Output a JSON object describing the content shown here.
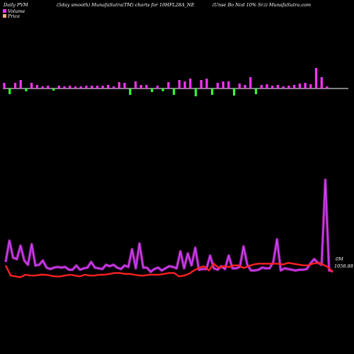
{
  "header": {
    "left": "Daily PVM",
    "center": "(5day smooth) MunafaSutra(TM) charts for 10HFL28A_NE",
    "right": "(Unse   Bo   Ncd 10% Sr.i) MunafaSutra.com"
  },
  "legend": {
    "volume_label": "Volume",
    "price_label": "Price",
    "volume_color": "#ff33ff",
    "price_color": "#ffaa88"
  },
  "labels": {
    "volume_marker": "0M",
    "last_price": "1058.88"
  },
  "colors": {
    "bar_up": "#ff33ff",
    "bar_down": "#33ff33",
    "volume_line": "#cc44ff",
    "price_line": "#ff2020",
    "axis": "#ffffff"
  },
  "chart_data": [
    {
      "type": "bar",
      "name": "volume_bars",
      "direction": [
        "up",
        "down",
        "up",
        "up",
        "down",
        "up",
        "up",
        "up",
        "up",
        "down",
        "up",
        "up",
        "up",
        "up",
        "up",
        "up",
        "up",
        "up",
        "up",
        "up",
        "up",
        "up",
        "up",
        "down",
        "up",
        "up",
        "up",
        "down",
        "up",
        "down",
        "up",
        "down",
        "up",
        "up",
        "up",
        "down",
        "up",
        "up",
        "down",
        "up",
        "up",
        "up",
        "down",
        "up",
        "up",
        "up",
        "down",
        "up",
        "up",
        "up",
        "up",
        "up",
        "up",
        "up",
        "up",
        "up",
        "up",
        "up",
        "up",
        "up"
      ],
      "values": [
        8,
        8,
        8,
        12,
        4,
        8,
        5,
        3,
        4,
        3,
        4,
        3,
        4,
        3,
        3,
        4,
        4,
        4,
        4,
        5,
        3,
        9,
        8,
        9,
        10,
        5,
        5,
        5,
        4,
        4,
        9,
        9,
        12,
        10,
        14,
        11,
        12,
        14,
        9,
        8,
        10,
        10,
        10,
        7,
        5,
        16,
        8,
        5,
        6,
        4,
        5,
        3,
        4,
        5,
        7,
        8,
        6,
        29,
        16,
        3
      ]
    },
    {
      "type": "line",
      "name": "volume_smooth",
      "values": [
        22,
        52,
        28,
        26,
        45,
        24,
        18,
        47,
        17,
        18,
        24,
        14,
        12,
        14,
        15,
        14,
        15,
        11,
        11,
        17,
        11,
        13,
        14,
        22,
        14,
        13,
        12,
        18,
        16,
        18,
        14,
        12,
        17,
        15,
        40,
        13,
        48,
        14,
        14,
        8,
        12,
        14,
        10,
        13,
        16,
        15,
        13,
        37,
        13,
        34,
        17,
        42,
        11,
        12,
        12,
        31,
        13,
        11,
        16,
        12,
        31,
        13,
        13,
        15,
        44,
        18,
        10,
        10,
        11,
        14,
        13,
        13,
        22,
        54,
        10,
        13,
        12,
        11,
        10,
        11,
        11,
        12,
        20,
        26,
        21,
        18,
        138,
        10,
        9
      ]
    },
    {
      "type": "line",
      "name": "price",
      "values": [
        1059.6,
        1058.4,
        1058.3,
        1058.2,
        1058.5,
        1058.4,
        1058.4,
        1058.5,
        1058.5,
        1058.4,
        1058.3,
        1058.3,
        1058.4,
        1058.5,
        1058.4,
        1058.3,
        1058.5,
        1058.4,
        1058.4,
        1058.5,
        1058.5,
        1058.6,
        1058.7,
        1058.7,
        1058.6,
        1058.6,
        1058.5,
        1058.4,
        1058.4,
        1058.5,
        1058.5,
        1058.5,
        1058.6,
        1058.7,
        1058.7,
        1058.3,
        1058.4,
        1058.6,
        1059.0,
        1059.3,
        1059.5,
        1059.0,
        1059.8,
        1059.3,
        1059.5,
        1059.4,
        1059.6,
        1059.6,
        1059.3,
        1059.5,
        1059.7,
        1059.8,
        1059.8,
        1059.8,
        1059.8,
        1059.8,
        1059.7,
        1059.9,
        1059.8,
        1059.7,
        1059.6,
        1059.6,
        1059.8,
        1059.9,
        1059.7,
        1059.4,
        1058.8
      ]
    }
  ]
}
